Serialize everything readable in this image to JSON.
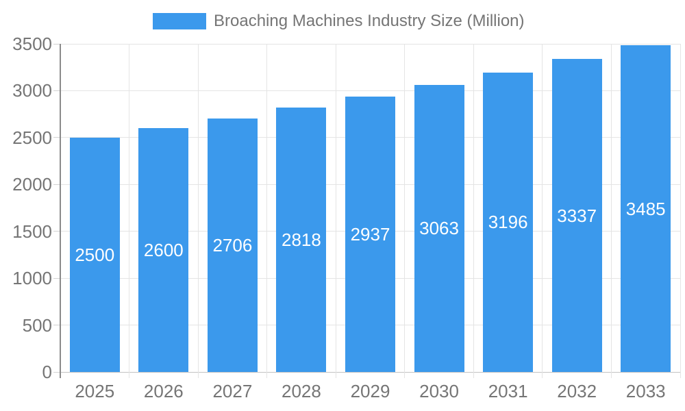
{
  "legend": {
    "series_label": "Broaching Machines Industry Size (Million)",
    "swatch_color": "#3B99EC"
  },
  "colors": {
    "bar": "#3B99EC",
    "grid_line": "#e4e4e4",
    "baseline": "#c2c2c2",
    "axis_line": "#8a8a8a",
    "tick": "#d2d2d2",
    "axis_text": "#757575",
    "bar_label_text": "#ffffff",
    "background": "#ffffff"
  },
  "chart_data": {
    "type": "bar",
    "title": "Broaching Machines Industry Size (Million)",
    "categories": [
      "2025",
      "2026",
      "2027",
      "2028",
      "2029",
      "2030",
      "2031",
      "2032",
      "2033"
    ],
    "series": [
      {
        "name": "Broaching Machines Industry Size (Million)",
        "color": "#3B99EC",
        "values": [
          2500,
          2600,
          2706,
          2818,
          2937,
          3063,
          3196,
          3337,
          3485
        ]
      }
    ],
    "xlabel": "",
    "ylabel": "",
    "ylim": [
      0,
      3500
    ],
    "yticks": [
      0,
      500,
      1000,
      1500,
      2000,
      2500,
      3000,
      3500
    ],
    "grid": true,
    "legend_position": "top-center",
    "data_labels": {
      "position": "inside-center",
      "color": "#ffffff"
    }
  }
}
